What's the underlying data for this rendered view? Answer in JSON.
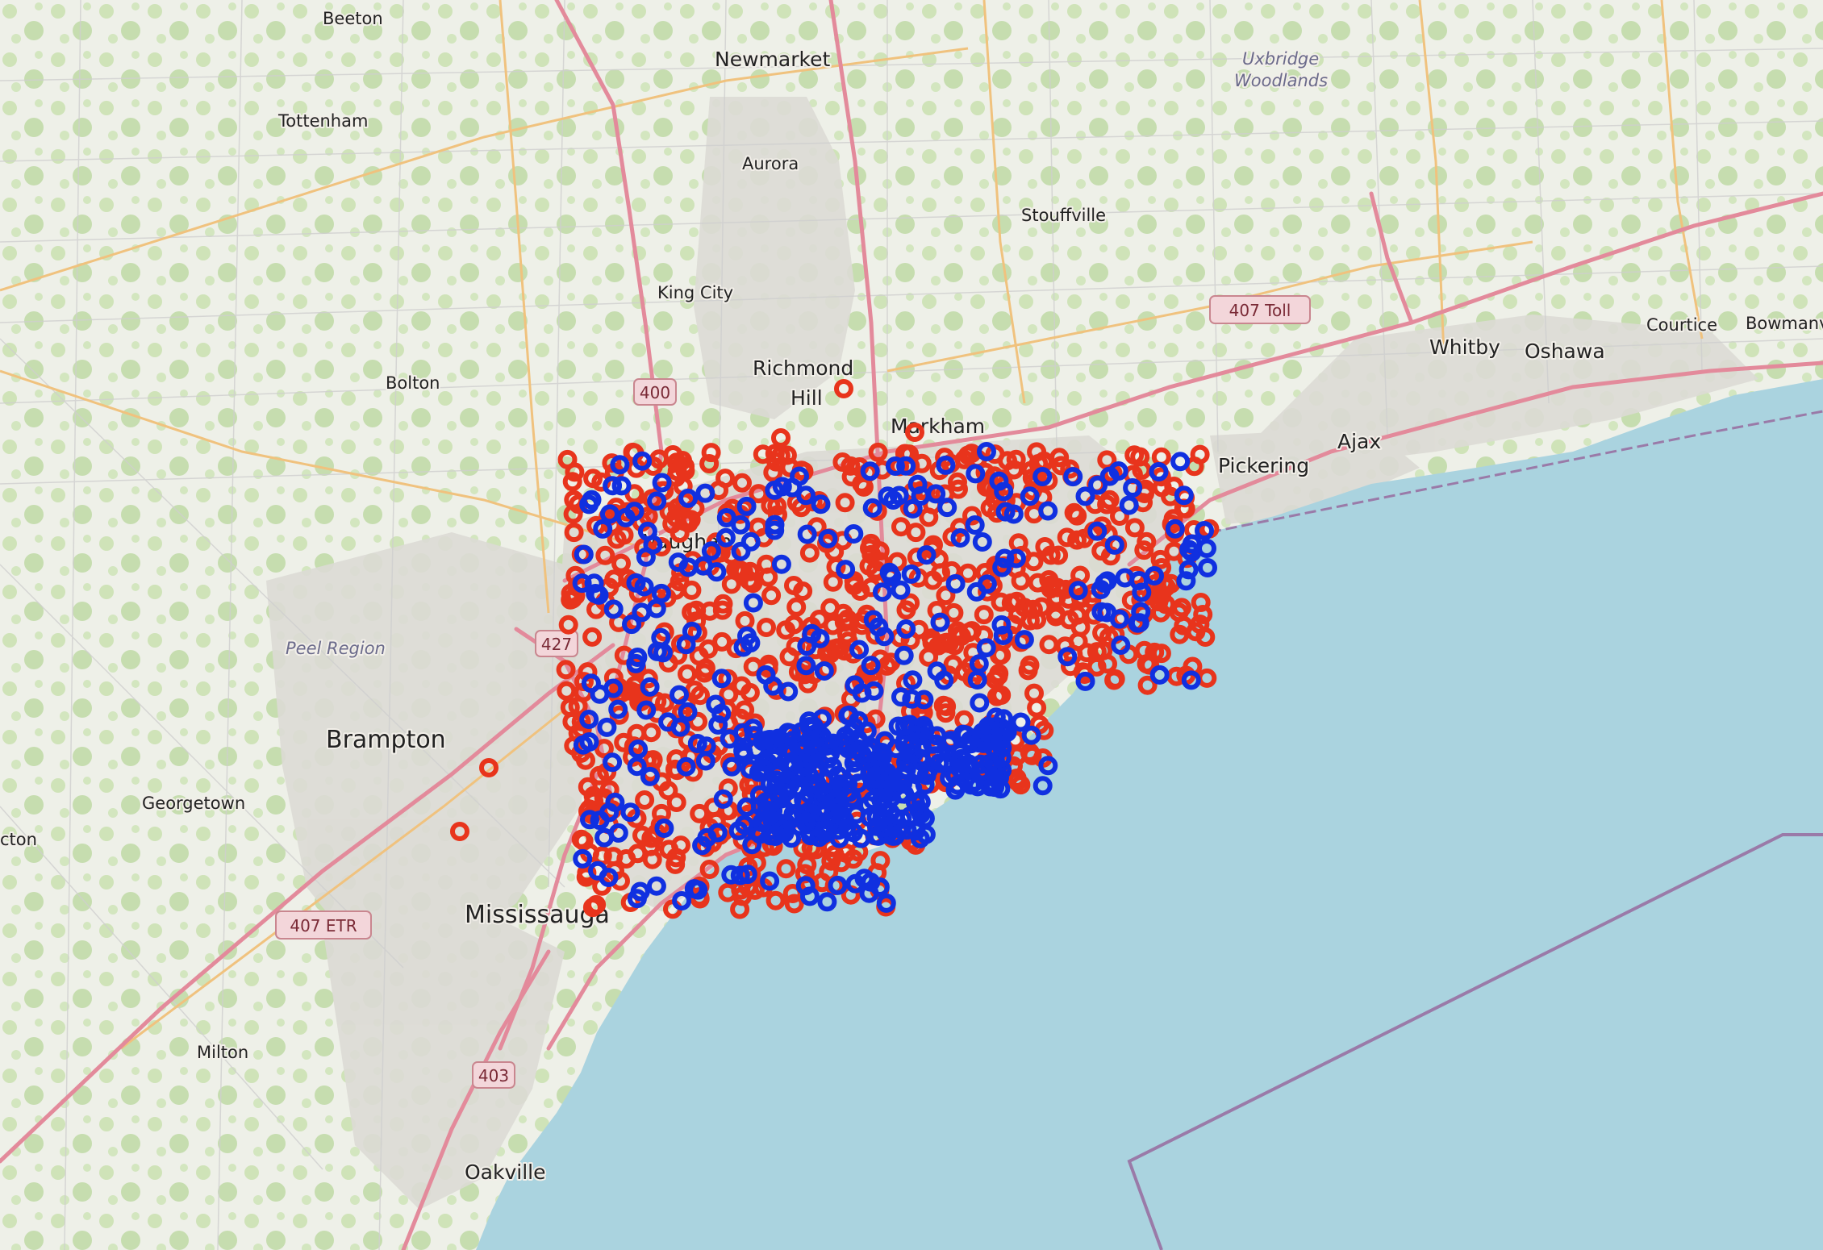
{
  "map": {
    "colors": {
      "land": "#eef0e8",
      "water": "#aad3df",
      "forest": "#c8dfb0",
      "urban": "#dddbd6",
      "road_major": "#e38a9b",
      "road_secondary": "#f3c98a",
      "road_minor": "#cfcfcf",
      "boundary": "#9a7aa8",
      "marker_red": "#e8341c",
      "marker_blue": "#1030e0"
    },
    "places": [
      {
        "name": "Beeton",
        "cls": "minor"
      },
      {
        "name": "Newmarket",
        "cls": "mid"
      },
      {
        "name": "Tottenham",
        "cls": "minor"
      },
      {
        "name": "Aurora",
        "cls": "minor"
      },
      {
        "name": "Uxbridge",
        "cls": "italic"
      },
      {
        "name": "Woodlands",
        "cls": "italic"
      },
      {
        "name": "Stouffville",
        "cls": "minor"
      },
      {
        "name": "King City",
        "cls": "minor"
      },
      {
        "name": "Bolton",
        "cls": "minor"
      },
      {
        "name": "Richmond",
        "cls": "mid"
      },
      {
        "name": "Hill",
        "cls": "mid"
      },
      {
        "name": "Markham",
        "cls": "mid"
      },
      {
        "name": "Whitby",
        "cls": "mid"
      },
      {
        "name": "Oshawa",
        "cls": "mid"
      },
      {
        "name": "Courtice",
        "cls": "minor"
      },
      {
        "name": "Bowmanv",
        "cls": "minor"
      },
      {
        "name": "Ajax",
        "cls": "mid"
      },
      {
        "name": "Pickering",
        "cls": "mid"
      },
      {
        "name": "Vaughan",
        "cls": "mid"
      },
      {
        "name": "Peel Region",
        "cls": "italic"
      },
      {
        "name": "Brampton",
        "cls": "major"
      },
      {
        "name": "Georgetown",
        "cls": "minor"
      },
      {
        "name": "cton",
        "cls": "minor"
      },
      {
        "name": "Mississauga",
        "cls": "major"
      },
      {
        "name": "Milton",
        "cls": "minor"
      },
      {
        "name": "Oakville",
        "cls": "mid"
      }
    ],
    "shields": [
      "400",
      "407 Toll",
      "427",
      "407 ETR",
      "403"
    ]
  }
}
